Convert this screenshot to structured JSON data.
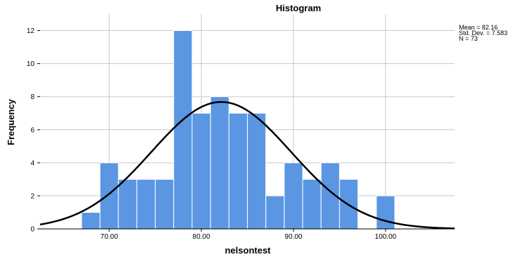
{
  "chart_data": {
    "type": "bar",
    "title": "Histogram",
    "xlabel": "nelsontest",
    "ylabel": "Frequency",
    "x_ticks": [
      "70.00",
      "80.00",
      "90.00",
      "100.00"
    ],
    "y_ticks": [
      "0",
      "2",
      "4",
      "6",
      "8",
      "10",
      "12"
    ],
    "xlim": [
      62.5,
      107.5
    ],
    "ylim": [
      0,
      13
    ],
    "bin_width": 2,
    "bins": [
      {
        "start": 67,
        "end": 69,
        "count": 1
      },
      {
        "start": 69,
        "end": 71,
        "count": 4
      },
      {
        "start": 71,
        "end": 73,
        "count": 3
      },
      {
        "start": 73,
        "end": 75,
        "count": 3
      },
      {
        "start": 75,
        "end": 77,
        "count": 3
      },
      {
        "start": 77,
        "end": 79,
        "count": 12
      },
      {
        "start": 79,
        "end": 81,
        "count": 7
      },
      {
        "start": 81,
        "end": 83,
        "count": 8
      },
      {
        "start": 83,
        "end": 85,
        "count": 7
      },
      {
        "start": 85,
        "end": 87,
        "count": 7
      },
      {
        "start": 87,
        "end": 89,
        "count": 2
      },
      {
        "start": 89,
        "end": 91,
        "count": 4
      },
      {
        "start": 91,
        "end": 93,
        "count": 3
      },
      {
        "start": 93,
        "end": 95,
        "count": 4
      },
      {
        "start": 95,
        "end": 97,
        "count": 3
      },
      {
        "start": 99,
        "end": 101,
        "count": 2
      }
    ],
    "normal_curve": {
      "mean": 82.16,
      "sd": 7.583,
      "n": 73
    },
    "stats_text": [
      "Mean = 82.16",
      "Std. Dev. = 7.583",
      "N = 73"
    ],
    "grid": true,
    "colors": {
      "bar": "#5b96e3",
      "bar_edge": "#ffffff",
      "curve": "#000000",
      "grid": "#c8c8c8"
    }
  }
}
